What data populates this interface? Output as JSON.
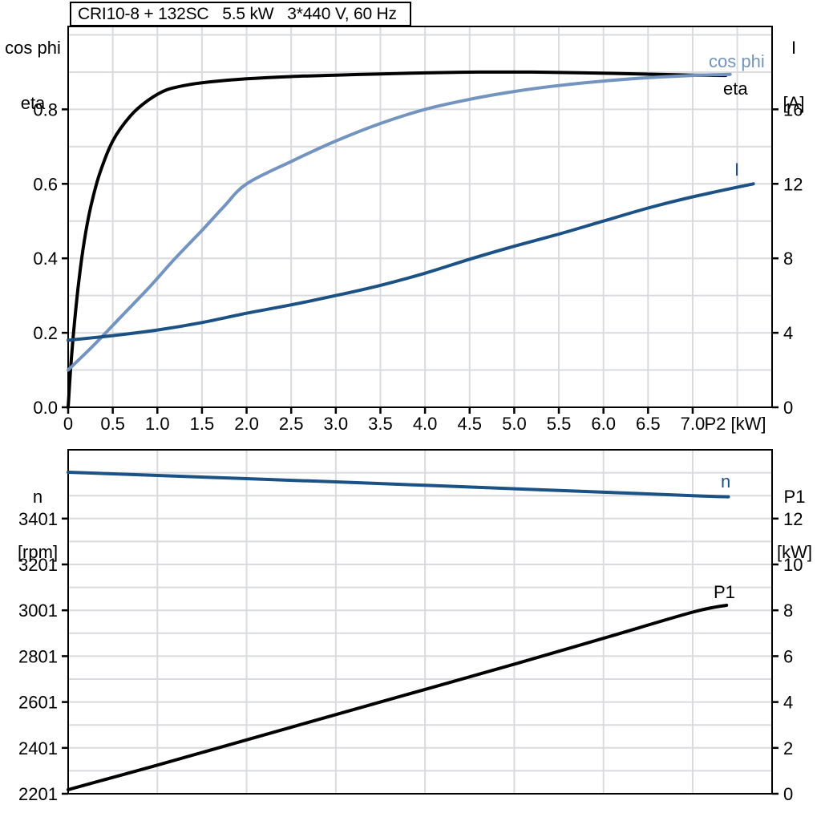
{
  "colors": {
    "black": "#000000",
    "light_blue": "#7494c0",
    "dark_blue": "#1b5184",
    "gridline": "#d9dbdf",
    "frame": "#000000"
  },
  "chart_data": [
    {
      "type": "line",
      "title": "CRI10-8 + 132SC   5.5 kW   3*440 V, 60 Hz",
      "x_axis": {
        "label": "P2 [kW]",
        "min": 0,
        "max": 7.89,
        "grid_step": 0.5,
        "ticks": [
          {
            "v": 0,
            "label": "0"
          },
          {
            "v": 0.5,
            "label": "0.5"
          },
          {
            "v": 1,
            "label": "1.0"
          },
          {
            "v": 1.5,
            "label": "1.5"
          },
          {
            "v": 2,
            "label": "2.0"
          },
          {
            "v": 2.5,
            "label": "2.5"
          },
          {
            "v": 3,
            "label": "3.0"
          },
          {
            "v": 3.5,
            "label": "3.5"
          },
          {
            "v": 4,
            "label": "4.0"
          },
          {
            "v": 4.5,
            "label": "4.5"
          },
          {
            "v": 5,
            "label": "5.0"
          },
          {
            "v": 5.5,
            "label": "5.5"
          },
          {
            "v": 6,
            "label": "6.0"
          },
          {
            "v": 6.5,
            "label": "6.5"
          },
          {
            "v": 7,
            "label": "7.0"
          }
        ]
      },
      "left_axis": {
        "title_lines": [
          "cos phi",
          "eta"
        ],
        "min": 0,
        "max": 1.0226,
        "grid_step": 0.1,
        "ticks": [
          {
            "v": 0,
            "label": "0.0"
          },
          {
            "v": 0.2,
            "label": "0.2"
          },
          {
            "v": 0.4,
            "label": "0.4"
          },
          {
            "v": 0.6,
            "label": "0.6"
          },
          {
            "v": 0.8,
            "label": "0.8"
          }
        ]
      },
      "right_axis": {
        "title_lines": [
          "I",
          "[A]"
        ],
        "min": 0,
        "max": 20.45,
        "ticks": [
          {
            "v": 0,
            "label": "0"
          },
          {
            "v": 4,
            "label": "4"
          },
          {
            "v": 8,
            "label": "8"
          },
          {
            "v": 12,
            "label": "12"
          },
          {
            "v": 16,
            "label": "16"
          }
        ]
      },
      "series": [
        {
          "name": "eta",
          "label": "eta",
          "axis": "left",
          "color": "#000000",
          "points": [
            [
              0,
              0
            ],
            [
              0.03,
              0.11
            ],
            [
              0.07,
              0.225
            ],
            [
              0.12,
              0.34
            ],
            [
              0.18,
              0.445
            ],
            [
              0.25,
              0.535
            ],
            [
              0.35,
              0.625
            ],
            [
              0.5,
              0.715
            ],
            [
              0.7,
              0.783
            ],
            [
              0.9,
              0.825
            ],
            [
              1.1,
              0.852
            ],
            [
              1.35,
              0.866
            ],
            [
              1.6,
              0.874
            ],
            [
              2,
              0.882
            ],
            [
              2.5,
              0.888
            ],
            [
              3,
              0.892
            ],
            [
              3.5,
              0.895
            ],
            [
              4,
              0.898
            ],
            [
              4.6,
              0.9
            ],
            [
              5.2,
              0.9
            ],
            [
              5.8,
              0.898
            ],
            [
              6.4,
              0.895
            ],
            [
              7,
              0.892
            ],
            [
              7.37,
              0.891
            ]
          ]
        },
        {
          "name": "cos phi",
          "label": "cos phi",
          "axis": "left",
          "color": "#7494c0",
          "points": [
            [
              0,
              0.1
            ],
            [
              0.3,
              0.17
            ],
            [
              0.6,
              0.245
            ],
            [
              0.9,
              0.32
            ],
            [
              1.2,
              0.4
            ],
            [
              1.5,
              0.475
            ],
            [
              1.75,
              0.54
            ],
            [
              2,
              0.6
            ],
            [
              2.5,
              0.66
            ],
            [
              3,
              0.715
            ],
            [
              3.5,
              0.762
            ],
            [
              4,
              0.8
            ],
            [
              4.5,
              0.827
            ],
            [
              5,
              0.848
            ],
            [
              5.5,
              0.864
            ],
            [
              6,
              0.876
            ],
            [
              6.5,
              0.885
            ],
            [
              7,
              0.891
            ],
            [
              7.42,
              0.894
            ]
          ]
        },
        {
          "name": "I",
          "label": "I",
          "axis": "right",
          "color": "#1b5184",
          "points": [
            [
              0,
              3.6
            ],
            [
              0.5,
              3.85
            ],
            [
              1,
              4.15
            ],
            [
              1.5,
              4.55
            ],
            [
              2,
              5.05
            ],
            [
              2.5,
              5.5
            ],
            [
              3,
              6
            ],
            [
              3.5,
              6.55
            ],
            [
              4,
              7.2
            ],
            [
              4.5,
              7.95
            ],
            [
              5,
              8.65
            ],
            [
              5.5,
              9.3
            ],
            [
              6,
              10
            ],
            [
              6.5,
              10.7
            ],
            [
              7,
              11.3
            ],
            [
              7.68,
              12
            ]
          ]
        }
      ]
    },
    {
      "type": "line",
      "x_axis": {
        "label": "",
        "min": 0,
        "max": 7.89,
        "grid_step": 1.0,
        "ticks": []
      },
      "left_axis": {
        "title_lines": [
          "n",
          "[rpm]"
        ],
        "min": 2201,
        "max": 3701,
        "grid_step": 100,
        "ticks": [
          {
            "v": 2201,
            "label": "2201"
          },
          {
            "v": 2401,
            "label": "2401"
          },
          {
            "v": 2601,
            "label": "2601"
          },
          {
            "v": 2801,
            "label": "2801"
          },
          {
            "v": 3001,
            "label": "3001"
          },
          {
            "v": 3201,
            "label": "3201"
          },
          {
            "v": 3401,
            "label": "3401"
          }
        ]
      },
      "right_axis": {
        "title_lines": [
          "P1",
          "[kW]"
        ],
        "min": 0,
        "max": 15,
        "ticks": [
          {
            "v": 0,
            "label": "0"
          },
          {
            "v": 2,
            "label": "2"
          },
          {
            "v": 4,
            "label": "4"
          },
          {
            "v": 6,
            "label": "6"
          },
          {
            "v": 8,
            "label": "8"
          },
          {
            "v": 10,
            "label": "10"
          },
          {
            "v": 12,
            "label": "12"
          }
        ]
      },
      "series": [
        {
          "name": "n",
          "label": "n",
          "axis": "left",
          "color": "#1b5184",
          "points": [
            [
              0,
              3603
            ],
            [
              1,
              3589
            ],
            [
              2,
              3575
            ],
            [
              3,
              3561
            ],
            [
              4,
              3546
            ],
            [
              5,
              3531
            ],
            [
              6,
              3516
            ],
            [
              7,
              3501
            ],
            [
              7.4,
              3496
            ]
          ]
        },
        {
          "name": "P1",
          "label": "P1",
          "axis": "right",
          "color": "#000000",
          "points": [
            [
              0,
              0.18
            ],
            [
              1,
              1.25
            ],
            [
              2,
              2.35
            ],
            [
              3,
              3.45
            ],
            [
              4,
              4.55
            ],
            [
              5,
              5.65
            ],
            [
              6,
              6.78
            ],
            [
              7,
              7.92
            ],
            [
              7.38,
              8.22
            ]
          ]
        }
      ]
    }
  ]
}
